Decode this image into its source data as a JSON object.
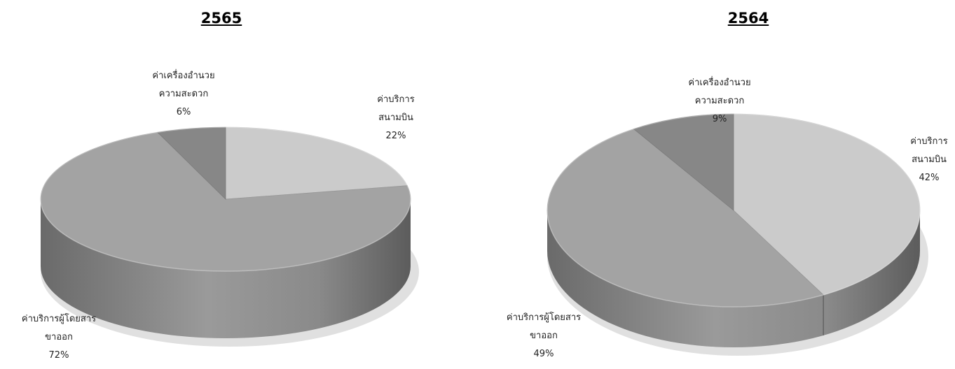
{
  "chart_data": [
    {
      "type": "pie",
      "title": "2565",
      "slices": [
        {
          "label_lines": [
            "ค่าบริการ",
            "สนามบิน"
          ],
          "value": 22,
          "value_label": "22%",
          "color": "#cbcbcb"
        },
        {
          "label_lines": [
            "ค่าบริการผู้โดยสาร",
            "ขาออก"
          ],
          "value": 72,
          "value_label": "72%",
          "color": "#a3a3a3"
        },
        {
          "label_lines": [
            "ค่าเครื่องอำนวย",
            "ความสะดวก"
          ],
          "value": 6,
          "value_label": "6%",
          "color": "#878787"
        }
      ]
    },
    {
      "type": "pie",
      "title": "2564",
      "slices": [
        {
          "label_lines": [
            "ค่าบริการ",
            "สนามบิน"
          ],
          "value": 42,
          "value_label": "42%",
          "color": "#cbcbcb"
        },
        {
          "label_lines": [
            "ค่าบริการผู้โดยสาร",
            "ขาออก"
          ],
          "value": 49,
          "value_label": "49%",
          "color": "#a3a3a3"
        },
        {
          "label_lines": [
            "ค่าเครื่องอำนวย",
            "ความสะดวก"
          ],
          "value": 9,
          "value_label": "9%",
          "color": "#878787"
        }
      ]
    }
  ]
}
